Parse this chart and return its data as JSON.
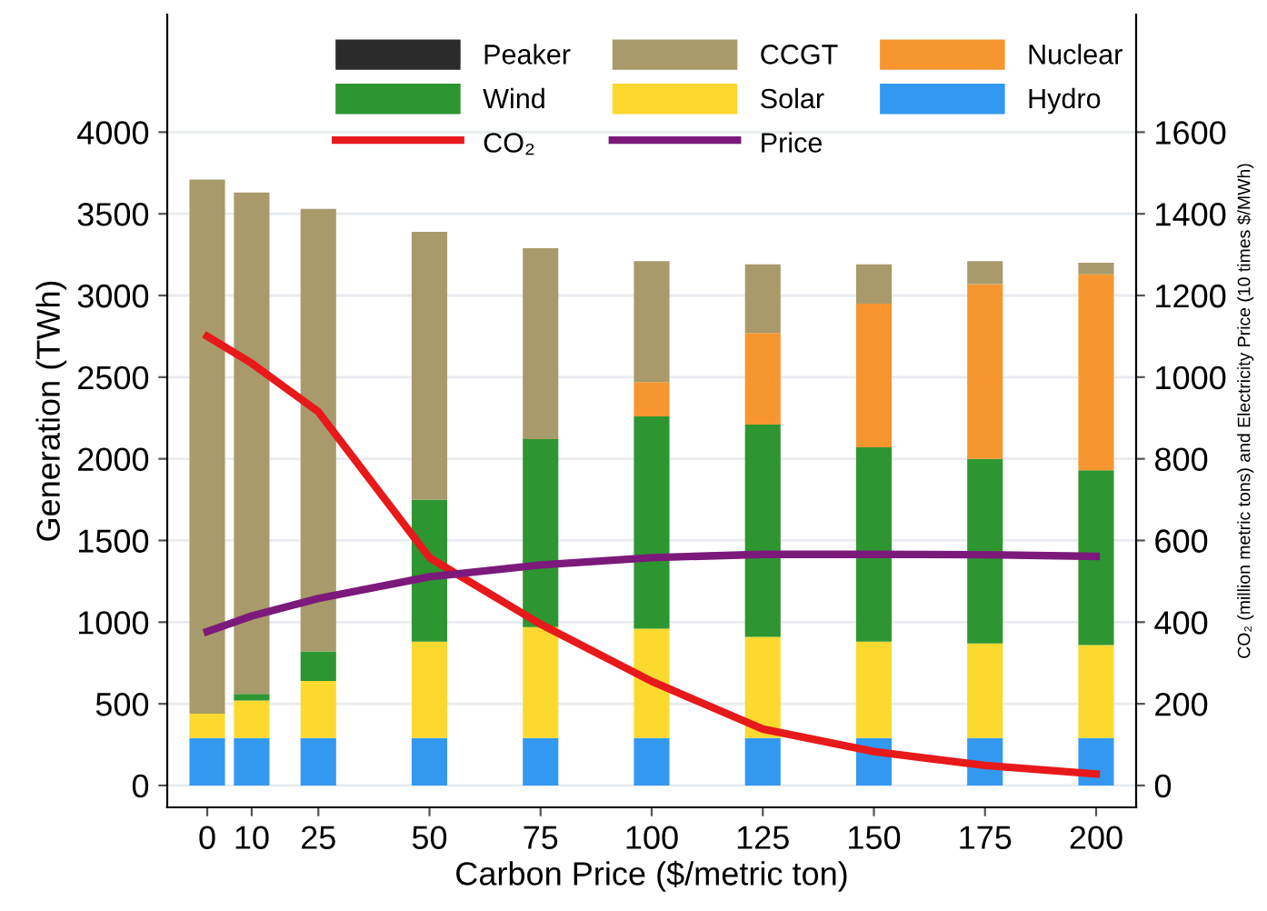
{
  "chart_data": {
    "type": "bar",
    "stacked": true,
    "xlabel": "Carbon Price ($/metric ton)",
    "ylabel": "Generation (TWh)",
    "y2label": "CO₂ (million metric tons) and Electricity Price (10 times $/MWh)",
    "x": [
      0,
      10,
      25,
      50,
      75,
      100,
      125,
      150,
      175,
      200
    ],
    "xlim": [
      -9,
      209
    ],
    "xticks": [
      0,
      10,
      25,
      50,
      75,
      100,
      125,
      150,
      175,
      200
    ],
    "ylim": [
      -134,
      4720
    ],
    "yticks": [
      0,
      500,
      1000,
      1500,
      2000,
      2500,
      3000,
      3500,
      4000
    ],
    "y2lim": [
      -53.6,
      1888
    ],
    "y2ticks": [
      0,
      200,
      400,
      600,
      800,
      1000,
      1200,
      1400,
      1600
    ],
    "grid": "y",
    "legend": "top",
    "series": [
      {
        "name": "Hydro",
        "color": "#3399f0",
        "values": [
          290,
          290,
          290,
          290,
          290,
          290,
          290,
          290,
          290,
          290
        ]
      },
      {
        "name": "Solar",
        "color": "#fcd92f",
        "values": [
          150,
          230,
          350,
          590,
          680,
          670,
          620,
          590,
          580,
          570
        ]
      },
      {
        "name": "Wind",
        "color": "#2e9630",
        "values": [
          0,
          40,
          180,
          870,
          1150,
          1300,
          1300,
          1190,
          1130,
          1070
        ]
      },
      {
        "name": "Nuclear",
        "color": "#f7962f",
        "values": [
          0,
          0,
          0,
          0,
          0,
          210,
          560,
          880,
          1070,
          1200
        ]
      },
      {
        "name": "CCGT",
        "color": "#a89a6a",
        "values": [
          3270,
          3070,
          2710,
          1640,
          1170,
          740,
          420,
          240,
          140,
          70
        ]
      },
      {
        "name": "Peaker",
        "color": "#2b2b2b",
        "values": [
          0,
          0,
          0,
          0,
          0,
          0,
          0,
          0,
          0,
          0
        ]
      },
      {
        "name": "CO₂",
        "type": "line",
        "axis": "y2",
        "color": "#e8191a",
        "values": [
          1100,
          1034,
          915,
          558,
          395,
          255,
          138,
          83,
          49,
          28
        ]
      },
      {
        "name": "Price",
        "type": "line",
        "axis": "y2",
        "color": "#7b1a7b",
        "values": [
          377,
          415,
          458,
          511,
          540,
          558,
          566,
          566,
          565,
          561
        ]
      }
    ]
  }
}
